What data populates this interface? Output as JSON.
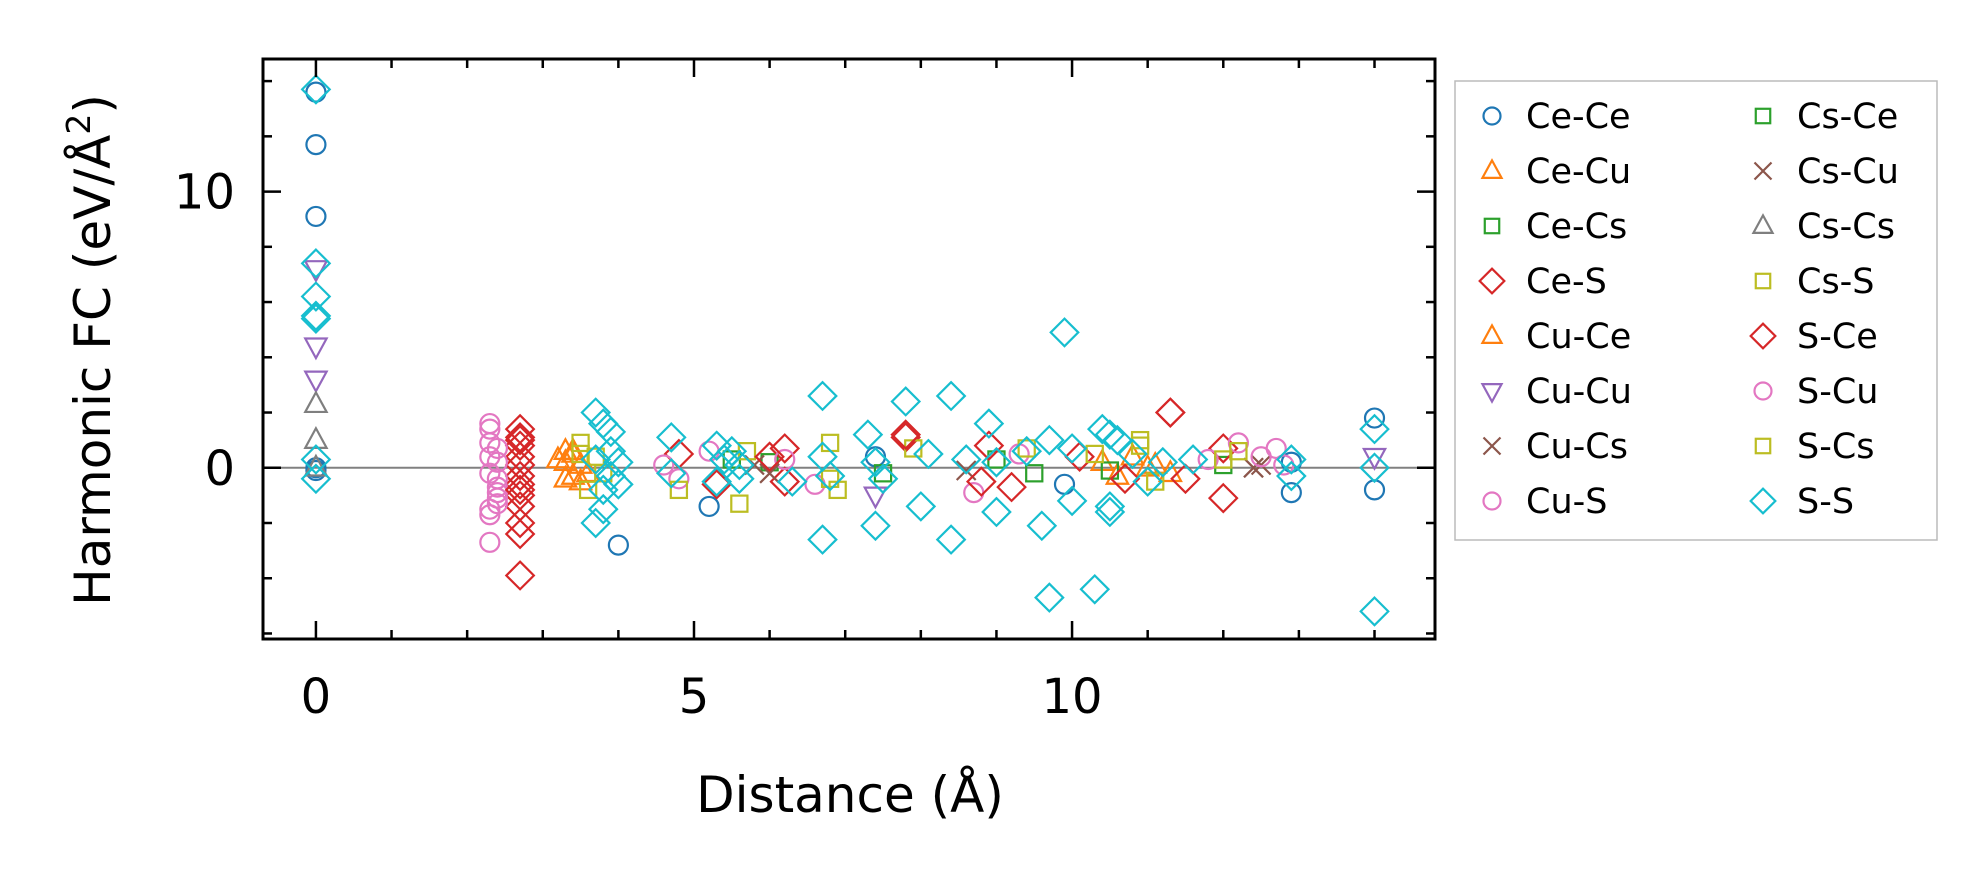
{
  "chart_data": {
    "type": "scatter",
    "title": "",
    "xlabel": "Distance (Å)",
    "ylabel_main": "Harmonic FC (eV/Å",
    "ylabel_sup": "2",
    "ylabel_tail": ")",
    "xlim": [
      -0.7,
      14.8
    ],
    "ylim": [
      -6.2,
      14.8
    ],
    "xticks": [
      0,
      5,
      10
    ],
    "xtick_labels": [
      "0",
      "5",
      "10"
    ],
    "yticks": [
      0,
      10
    ],
    "ytick_labels": [
      "0",
      "10"
    ],
    "x_minor_step": 1,
    "y_minor_step": 2,
    "zero_line": true,
    "legend_position": "outside-right",
    "series": [
      {
        "name": "Ce-Ce",
        "marker": "circle",
        "color": "#1f77b4",
        "x": [
          0,
          0,
          0,
          0,
          0,
          4.0,
          5.2,
          7.4,
          9.9,
          12.9,
          12.9,
          14.0,
          14.0
        ],
        "y": [
          13.6,
          11.7,
          9.1,
          0.0,
          -0.1,
          -2.8,
          -1.4,
          0.4,
          -0.6,
          -0.9,
          0.2,
          1.8,
          -0.8
        ]
      },
      {
        "name": "Ce-Cu",
        "marker": "triangle-up",
        "color": "#ff7f0e",
        "x": [
          3.3,
          3.3,
          3.4,
          3.4,
          3.5,
          3.5,
          10.4,
          10.6,
          10.8,
          11.0,
          11.3
        ],
        "y": [
          0.6,
          0.2,
          -0.3,
          0.5,
          0.1,
          -0.5,
          0.2,
          -0.3,
          0.4,
          0.0,
          -0.2
        ]
      },
      {
        "name": "Ce-Cs",
        "marker": "square",
        "color": "#2ca02c",
        "x": [
          6.0,
          7.5,
          9.0,
          10.5,
          12.0
        ],
        "y": [
          0.2,
          -0.2,
          0.3,
          -0.1,
          0.1
        ]
      },
      {
        "name": "Ce-S",
        "marker": "diamond",
        "color": "#d62728",
        "x": [
          2.7,
          2.7,
          2.7,
          2.7,
          2.7,
          2.7,
          2.7,
          2.7,
          2.7,
          2.7,
          2.7,
          2.7,
          4.8,
          5.3,
          6.2,
          6.2,
          7.8,
          8.9,
          9.2,
          10.1,
          10.7,
          11.3,
          11.5,
          12.0,
          12.0
        ],
        "y": [
          1.4,
          1.1,
          0.8,
          0.4,
          0.1,
          -0.3,
          -0.6,
          -1.0,
          -1.4,
          -2.0,
          -2.4,
          -3.9,
          0.5,
          -0.6,
          0.7,
          -0.5,
          1.1,
          0.8,
          -0.7,
          0.4,
          -0.4,
          2.0,
          -0.4,
          -1.1,
          0.7
        ]
      },
      {
        "name": "Cu-Ce",
        "marker": "triangle-up",
        "color": "#ff7f0e",
        "x": [
          3.2,
          3.3,
          3.4,
          3.6,
          11.1
        ],
        "y": [
          0.3,
          -0.4,
          0.6,
          -0.2,
          0.1
        ]
      },
      {
        "name": "Cu-Cu",
        "marker": "triangle-down",
        "color": "#9467bd",
        "x": [
          0,
          0,
          0,
          7.4,
          14.0
        ],
        "y": [
          7.2,
          4.4,
          3.2,
          -1.0,
          0.4
        ]
      },
      {
        "name": "Cu-Cs",
        "marker": "x",
        "color": "#8c564b",
        "x": [
          5.8,
          8.6,
          12.4,
          12.5
        ],
        "y": [
          0.1,
          -0.1,
          0.0,
          0.1
        ]
      },
      {
        "name": "Cu-S",
        "marker": "circle",
        "color": "#e377c2",
        "x": [
          2.3,
          2.3,
          2.3,
          2.3,
          2.3,
          2.3,
          2.3,
          2.4,
          2.4,
          2.4,
          2.4,
          2.4,
          2.4,
          4.6,
          4.8,
          6.2,
          6.6,
          8.7,
          9.3,
          11.8,
          12.2,
          12.7,
          12.8
        ],
        "y": [
          1.6,
          1.4,
          0.4,
          -0.2,
          -1.5,
          -1.7,
          -2.7,
          0.7,
          0.2,
          -0.4,
          -0.7,
          -0.9,
          -1.3,
          0.1,
          -0.4,
          0.3,
          -0.6,
          -0.9,
          0.5,
          0.3,
          0.9,
          0.7,
          0.1
        ]
      },
      {
        "name": "Cs-Ce",
        "marker": "square",
        "color": "#2ca02c",
        "x": [
          5.5,
          9.5
        ],
        "y": [
          0.3,
          -0.2
        ]
      },
      {
        "name": "Cs-Cu",
        "marker": "x",
        "color": "#8c564b",
        "x": [
          6.0,
          12.4
        ],
        "y": [
          -0.2,
          0.0
        ]
      },
      {
        "name": "Cs-Cs",
        "marker": "triangle-up",
        "color": "#7f7f7f",
        "x": [
          0,
          0,
          0
        ],
        "y": [
          2.3,
          1.0,
          0.0
        ]
      },
      {
        "name": "Cs-S",
        "marker": "square",
        "color": "#bcbd22",
        "x": [
          3.5,
          3.6,
          3.7,
          3.8,
          4.8,
          5.6,
          5.7,
          6.8,
          6.9,
          7.9,
          9.4,
          10.3,
          10.9,
          11.1,
          12.0,
          12.2
        ],
        "y": [
          0.9,
          -0.8,
          0.4,
          -0.2,
          -0.8,
          -1.3,
          0.6,
          0.9,
          -0.8,
          0.7,
          0.7,
          0.5,
          1.0,
          -0.5,
          0.3,
          0.6
        ]
      },
      {
        "name": "S-Ce",
        "marker": "diamond",
        "color": "#d62728",
        "x": [
          2.7,
          2.7,
          6.0,
          7.8,
          8.8,
          11.3
        ],
        "y": [
          1.0,
          -0.8,
          0.4,
          1.2,
          -0.5,
          2.0
        ]
      },
      {
        "name": "S-Cu",
        "marker": "circle",
        "color": "#e377c2",
        "x": [
          2.3,
          2.4,
          5.2,
          12.5
        ],
        "y": [
          0.9,
          -1.1,
          0.6,
          0.4
        ]
      },
      {
        "name": "S-Cs",
        "marker": "square",
        "color": "#bcbd22",
        "x": [
          3.5,
          6.8,
          10.9
        ],
        "y": [
          0.5,
          -0.4,
          0.8
        ]
      },
      {
        "name": "S-S",
        "marker": "diamond",
        "color": "#17becf",
        "x": [
          0,
          0,
          0,
          0,
          0,
          0,
          0,
          3.7,
          3.7,
          3.7,
          3.8,
          3.8,
          3.8,
          3.9,
          3.9,
          3.9,
          4.0,
          4.0,
          4.7,
          4.7,
          5.3,
          5.3,
          5.4,
          5.5,
          5.6,
          5.6,
          6.3,
          6.7,
          6.7,
          6.7,
          6.8,
          7.3,
          7.4,
          7.4,
          7.5,
          7.8,
          8.0,
          8.1,
          8.4,
          8.4,
          8.6,
          8.9,
          9.0,
          9.0,
          9.4,
          9.6,
          9.7,
          9.7,
          9.9,
          10.0,
          10.0,
          10.3,
          10.4,
          10.5,
          10.5,
          10.5,
          10.6,
          10.8,
          11.0,
          11.2,
          11.6,
          12.9,
          12.9,
          14.0,
          14.0,
          14.0
        ],
        "y": [
          13.7,
          7.4,
          6.2,
          5.5,
          5.4,
          0.3,
          -0.4,
          2.0,
          0.3,
          -2.0,
          1.6,
          -0.8,
          -1.5,
          0.6,
          -0.3,
          1.3,
          0.2,
          -0.6,
          1.1,
          -0.2,
          0.8,
          -0.5,
          0.3,
          0.6,
          -0.4,
          0.1,
          -0.5,
          2.6,
          -2.6,
          0.4,
          -0.3,
          1.2,
          -2.1,
          0.2,
          -0.4,
          2.4,
          -1.4,
          0.5,
          2.6,
          -2.6,
          0.3,
          1.6,
          -1.6,
          0.2,
          0.6,
          -2.1,
          1.0,
          -4.7,
          4.9,
          -1.2,
          0.7,
          -4.4,
          1.4,
          1.2,
          -1.4,
          -1.6,
          1.0,
          0.5,
          -0.5,
          0.2,
          0.3,
          0.3,
          -0.3,
          1.4,
          0.0,
          -5.2
        ]
      }
    ]
  }
}
